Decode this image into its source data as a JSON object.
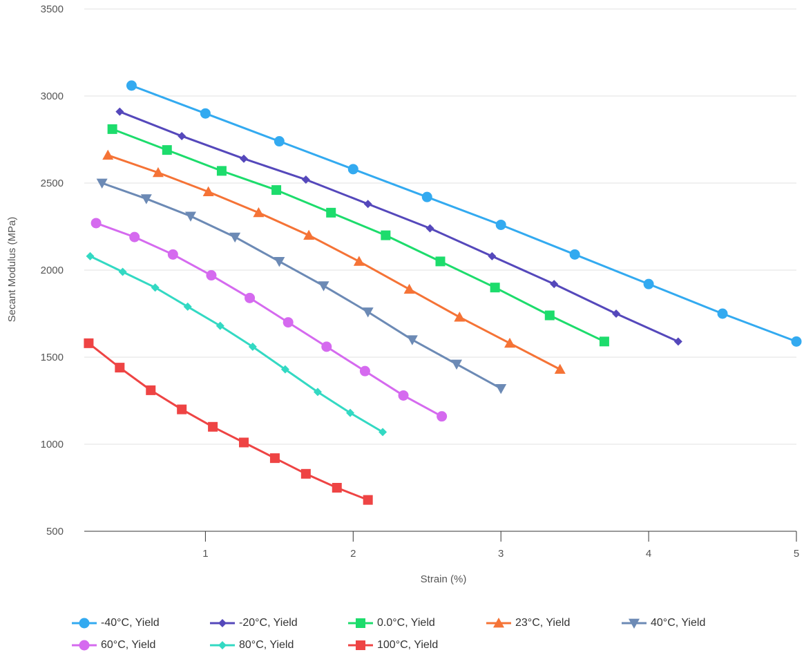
{
  "chart_data": {
    "type": "line",
    "xlabel": "Strain (%)",
    "ylabel": "Secant Modulus (MPa)",
    "xlim": [
      0.18,
      5.0
    ],
    "ylim": [
      500,
      3500
    ],
    "x_ticks": [
      1,
      2,
      3,
      4,
      5
    ],
    "y_ticks": [
      500,
      1000,
      1500,
      2000,
      2500,
      3000,
      3500
    ],
    "grid": "horizontal",
    "legend_position": "bottom",
    "series": [
      {
        "name": "-40°C, Yield",
        "color": "#33aaf0",
        "marker": "circle",
        "x": [
          0.5,
          1.0,
          1.5,
          2.0,
          2.5,
          3.0,
          3.5,
          4.0,
          4.5,
          5.0
        ],
        "y": [
          3060,
          2900,
          2740,
          2580,
          2420,
          2260,
          2090,
          1920,
          1750,
          1590
        ]
      },
      {
        "name": "-20°C, Yield",
        "color": "#5548bb",
        "marker": "diamond",
        "x": [
          0.42,
          0.84,
          1.26,
          1.68,
          2.1,
          2.52,
          2.94,
          3.36,
          3.78,
          4.2
        ],
        "y": [
          2910,
          2770,
          2640,
          2520,
          2380,
          2240,
          2080,
          1920,
          1750,
          1590
        ]
      },
      {
        "name": "0.0°C, Yield",
        "color": "#1ddc6c",
        "marker": "square",
        "x": [
          0.37,
          0.74,
          1.11,
          1.48,
          1.85,
          2.22,
          2.59,
          2.96,
          3.33,
          3.7
        ],
        "y": [
          2810,
          2690,
          2570,
          2460,
          2330,
          2200,
          2050,
          1900,
          1740,
          1590
        ]
      },
      {
        "name": "23°C, Yield",
        "color": "#f57336",
        "marker": "triangle-up",
        "x": [
          0.34,
          0.68,
          1.02,
          1.36,
          1.7,
          2.04,
          2.38,
          2.72,
          3.06,
          3.4
        ],
        "y": [
          2660,
          2560,
          2450,
          2330,
          2200,
          2050,
          1890,
          1730,
          1580,
          1430
        ]
      },
      {
        "name": "40°C, Yield",
        "color": "#6c8ab5",
        "marker": "triangle-down",
        "x": [
          0.3,
          0.6,
          0.9,
          1.2,
          1.5,
          1.8,
          2.1,
          2.4,
          2.7,
          3.0
        ],
        "y": [
          2500,
          2410,
          2310,
          2190,
          2050,
          1910,
          1760,
          1600,
          1460,
          1320
        ]
      },
      {
        "name": "60°C, Yield",
        "color": "#d56aef",
        "marker": "circle",
        "x": [
          0.26,
          0.52,
          0.78,
          1.04,
          1.3,
          1.56,
          1.82,
          2.08,
          2.34,
          2.6
        ],
        "y": [
          2270,
          2190,
          2090,
          1970,
          1840,
          1700,
          1560,
          1420,
          1280,
          1160
        ]
      },
      {
        "name": "80°C, Yield",
        "color": "#33d9c3",
        "marker": "diamond",
        "x": [
          0.22,
          0.44,
          0.66,
          0.88,
          1.1,
          1.32,
          1.54,
          1.76,
          1.98,
          2.2
        ],
        "y": [
          2080,
          1990,
          1900,
          1790,
          1680,
          1560,
          1430,
          1300,
          1180,
          1070
        ]
      },
      {
        "name": "100°C, Yield",
        "color": "#ee4444",
        "marker": "square",
        "x": [
          0.21,
          0.42,
          0.63,
          0.84,
          1.05,
          1.26,
          1.47,
          1.68,
          1.89,
          2.1
        ],
        "y": [
          1580,
          1440,
          1310,
          1200,
          1100,
          1010,
          920,
          830,
          750,
          680
        ]
      }
    ]
  }
}
